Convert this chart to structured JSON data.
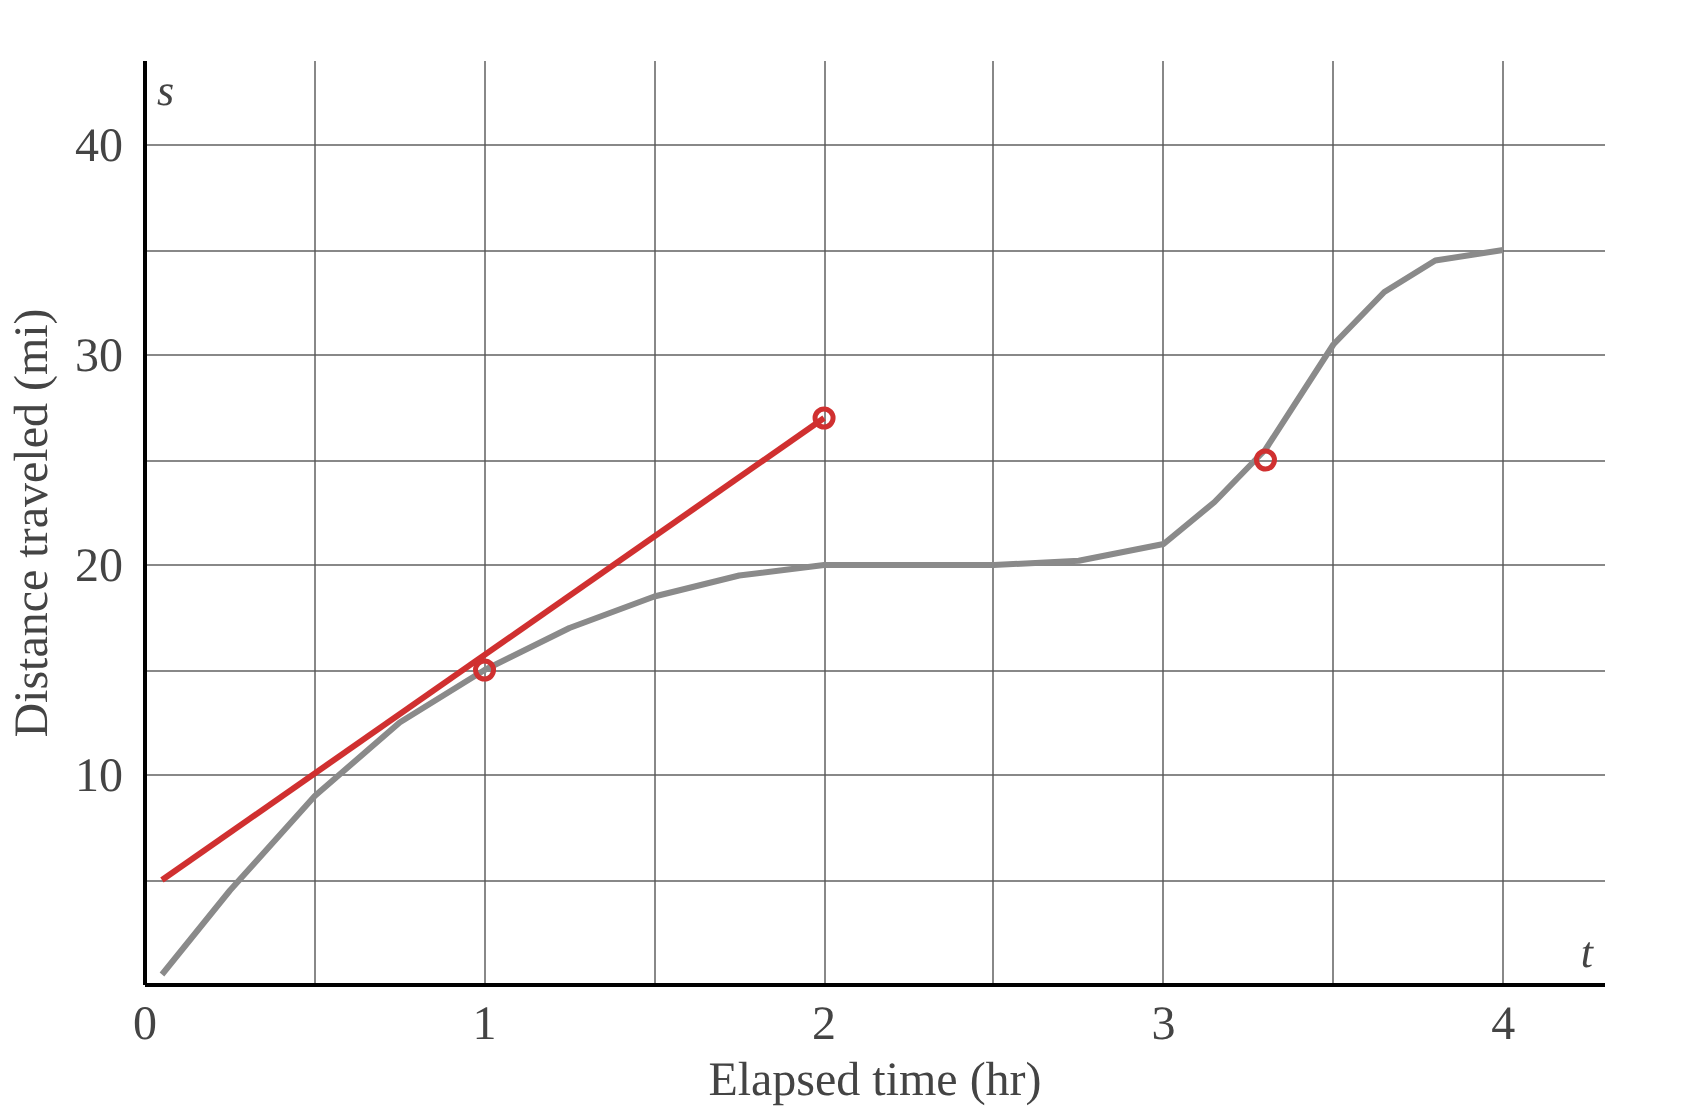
{
  "chart_data": {
    "type": "line",
    "xlabel": "Elapsed time (hr)",
    "ylabel": "Distance traveled (mi)",
    "annotations": [
      "s",
      "t"
    ],
    "xlim": [
      0,
      4.3
    ],
    "ylim": [
      0,
      44
    ],
    "xticks": [
      0,
      {
        "value": 0.5,
        "label": null
      },
      1,
      {
        "value": 1.5,
        "label": null
      },
      2,
      {
        "value": 2.5,
        "label": null
      },
      3,
      {
        "value": 3.5,
        "label": null
      },
      4
    ],
    "yticks": [
      {
        "value": 5,
        "label": null
      },
      10,
      {
        "value": 15,
        "label": null
      },
      20,
      {
        "value": 25,
        "label": null
      },
      30,
      {
        "value": 35,
        "label": null
      },
      40
    ],
    "grid": true,
    "series": [
      {
        "color": "#8a8a8a",
        "x": [
          0.05,
          0.25,
          0.5,
          0.75,
          1,
          1.25,
          1.5,
          1.75,
          2,
          2.25,
          2.5,
          2.75,
          3,
          3.15,
          3.3,
          3.5,
          3.65,
          3.8,
          4
        ],
        "values": [
          0.5,
          4.5,
          9,
          12.5,
          15,
          17,
          18.5,
          19.5,
          20,
          20,
          20,
          20.2,
          21,
          23,
          25.5,
          30.5,
          33,
          34.5,
          35
        ]
      },
      {
        "type": "line",
        "color": "#d03030",
        "x": [
          0.05,
          2
        ],
        "values": [
          5,
          27
        ]
      },
      {
        "type": "scatter",
        "color": "#d03030",
        "marker": "circle",
        "x": [
          1,
          2,
          3.3
        ],
        "values": [
          15,
          27,
          25
        ]
      }
    ]
  }
}
